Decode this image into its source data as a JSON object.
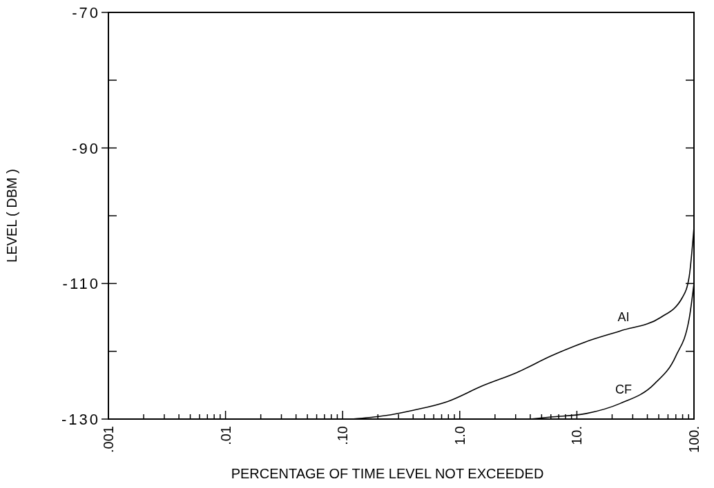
{
  "chart_data": {
    "type": "line",
    "xlabel": "PERCENTAGE OF TIME LEVEL NOT EXCEEDED",
    "ylabel": "LEVEL ( DBM )",
    "log": "x",
    "xlim": [
      0.001,
      100
    ],
    "ylim": [
      -130,
      -70
    ],
    "xticks": [
      {
        "value": 0.001,
        "label": ".001"
      },
      {
        "value": 0.002,
        "label": null
      },
      {
        "value": 0.003,
        "label": null
      },
      {
        "value": 0.004,
        "label": null
      },
      {
        "value": 0.005,
        "label": null
      },
      {
        "value": 0.006,
        "label": null
      },
      {
        "value": 0.007,
        "label": null
      },
      {
        "value": 0.008,
        "label": null
      },
      {
        "value": 0.009,
        "label": null
      },
      {
        "value": 0.01,
        "label": ".01"
      },
      {
        "value": 0.02,
        "label": null
      },
      {
        "value": 0.03,
        "label": null
      },
      {
        "value": 0.04,
        "label": null
      },
      {
        "value": 0.05,
        "label": null
      },
      {
        "value": 0.06,
        "label": null
      },
      {
        "value": 0.07,
        "label": null
      },
      {
        "value": 0.08,
        "label": null
      },
      {
        "value": 0.09,
        "label": null
      },
      {
        "value": 0.1,
        "label": ".10"
      },
      {
        "value": 0.2,
        "label": null
      },
      {
        "value": 0.3,
        "label": null
      },
      {
        "value": 0.4,
        "label": null
      },
      {
        "value": 0.5,
        "label": null
      },
      {
        "value": 0.6,
        "label": null
      },
      {
        "value": 0.7,
        "label": null
      },
      {
        "value": 0.8,
        "label": null
      },
      {
        "value": 0.9,
        "label": null
      },
      {
        "value": 1,
        "label": "1.0"
      },
      {
        "value": 2,
        "label": null
      },
      {
        "value": 3,
        "label": null
      },
      {
        "value": 4,
        "label": null
      },
      {
        "value": 5,
        "label": null
      },
      {
        "value": 6,
        "label": null
      },
      {
        "value": 7,
        "label": null
      },
      {
        "value": 8,
        "label": null
      },
      {
        "value": 9,
        "label": null
      },
      {
        "value": 10,
        "label": "10."
      },
      {
        "value": 20,
        "label": null
      },
      {
        "value": 30,
        "label": null
      },
      {
        "value": 40,
        "label": null
      },
      {
        "value": 50,
        "label": null
      },
      {
        "value": 60,
        "label": null
      },
      {
        "value": 70,
        "label": null
      },
      {
        "value": 80,
        "label": null
      },
      {
        "value": 90,
        "label": null
      },
      {
        "value": 100,
        "label": "100."
      }
    ],
    "yticks": [
      {
        "value": -130,
        "label": "-130"
      },
      {
        "value": -120,
        "label": null
      },
      {
        "value": -110,
        "label": "-110"
      },
      {
        "value": -100,
        "label": null
      },
      {
        "value": -90,
        "label": "-90"
      },
      {
        "value": -80,
        "label": null
      },
      {
        "value": -70,
        "label": "-70"
      }
    ],
    "grid": false,
    "marker": "none",
    "line_style": "solid",
    "series": [
      {
        "name": "AI",
        "color": "#000000",
        "x": [
          0.12,
          0.23,
          0.4,
          0.79,
          1.56,
          3.1,
          6,
          11.9,
          23.4,
          52,
          80,
          91,
          100
        ],
        "values": [
          -130,
          -129.5,
          -128.7,
          -127.4,
          -125.1,
          -123.1,
          -120.7,
          -118.6,
          -117,
          -115,
          -112,
          -109,
          -101.7
        ]
      },
      {
        "name": "CF",
        "color": "#000000",
        "x": [
          4,
          6,
          11.9,
          23.4,
          46,
          70,
          91,
          100
        ],
        "values": [
          -130,
          -129.7,
          -129.2,
          -127.7,
          -124.8,
          -120.7,
          -115.2,
          -110
        ]
      }
    ]
  }
}
